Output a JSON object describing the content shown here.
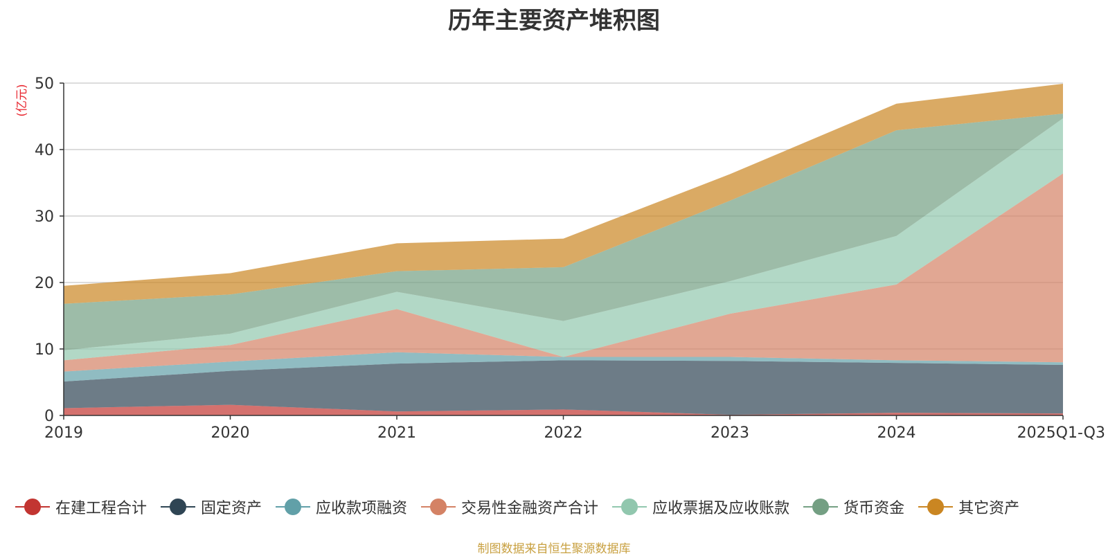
{
  "chart_data": {
    "type": "area",
    "stacked": true,
    "title": "历年主要资产堆积图",
    "ylabel": "(亿元)",
    "xlabel": "",
    "ylim": [
      0,
      50
    ],
    "yticks": [
      0,
      10,
      20,
      30,
      40,
      50
    ],
    "categories": [
      "2019",
      "2020",
      "2021",
      "2022",
      "2023",
      "2024",
      "2025Q1-Q3"
    ],
    "series": [
      {
        "name": "在建工程合计",
        "color": "#c23531",
        "values": [
          1.1,
          1.6,
          0.6,
          0.9,
          0.1,
          0.4,
          0.3
        ]
      },
      {
        "name": "固定资产",
        "color": "#2f4554",
        "values": [
          4.0,
          5.1,
          7.2,
          7.4,
          8.1,
          7.5,
          7.3
        ]
      },
      {
        "name": "应收款项融资",
        "color": "#61a0a8",
        "values": [
          1.5,
          1.4,
          1.7,
          0.5,
          0.6,
          0.4,
          0.4
        ]
      },
      {
        "name": "交易性金融资产合计",
        "color": "#d48265",
        "values": [
          1.7,
          2.5,
          6.5,
          0,
          6.5,
          11.4,
          28.4
        ]
      },
      {
        "name": "应收票据及应收账款",
        "color": "#91c7ae",
        "values": [
          1.5,
          1.7,
          2.6,
          5.4,
          4.9,
          7.3,
          8.3
        ]
      },
      {
        "name": "货币资金",
        "color": "#749f83",
        "values": [
          7.0,
          5.9,
          3.1,
          8.1,
          12.1,
          15.9,
          0.7
        ]
      },
      {
        "name": "其它资产",
        "color": "#ca8622",
        "values": [
          2.7,
          3.2,
          4.2,
          4.3,
          4.0,
          4.0,
          4.5
        ]
      }
    ],
    "grid": true,
    "legend_position": "bottom"
  },
  "footer": {
    "text": "制图数据来自恒生聚源数据库",
    "color": "#c8a040"
  }
}
